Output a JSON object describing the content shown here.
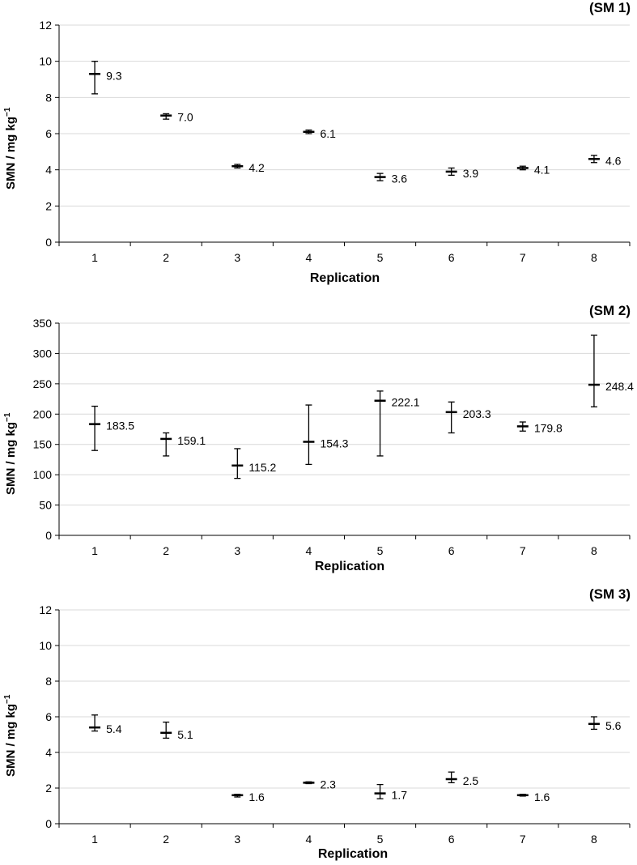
{
  "chart_data": [
    {
      "type": "scatter",
      "title": "(SM 1)",
      "xlabel": "Replication",
      "ylabel": "SMN / mg kg",
      "ylabel_superscript": "−1",
      "ylim": [
        0,
        12
      ],
      "yticks": [
        0,
        2,
        4,
        6,
        8,
        10,
        12
      ],
      "grid": true,
      "x": [
        1,
        2,
        3,
        4,
        5,
        6,
        7,
        8
      ],
      "values": [
        9.3,
        7.0,
        4.2,
        6.1,
        3.6,
        3.9,
        4.1,
        4.6
      ],
      "labels": [
        "9.3",
        "7.0",
        "4.2",
        "6.1",
        "3.6",
        "3.9",
        "4.1",
        "4.6"
      ],
      "error_low": [
        8.2,
        6.8,
        4.1,
        6.0,
        3.4,
        3.7,
        4.0,
        4.4
      ],
      "error_high": [
        10.0,
        7.1,
        4.3,
        6.2,
        3.8,
        4.1,
        4.2,
        4.8
      ]
    },
    {
      "type": "scatter",
      "title": "(SM 2)",
      "xlabel": "Replication",
      "ylabel": "SMN / mg kg",
      "ylabel_superscript": "−1",
      "ylim": [
        0,
        350
      ],
      "yticks": [
        0,
        50,
        100,
        150,
        200,
        250,
        300,
        350
      ],
      "grid": true,
      "x": [
        1,
        2,
        3,
        4,
        5,
        6,
        7,
        8
      ],
      "values": [
        183.5,
        159.1,
        115.2,
        154.3,
        222.1,
        203.3,
        179.8,
        248.4
      ],
      "labels": [
        "183.5",
        "159.1",
        "115.2",
        "154.3",
        "222.1",
        "203.3",
        "179.8",
        "248.4"
      ],
      "error_low": [
        140,
        131,
        94,
        117,
        131,
        169,
        172,
        212
      ],
      "error_high": [
        213,
        169,
        143,
        215,
        238,
        220,
        187,
        330
      ]
    },
    {
      "type": "scatter",
      "title": "(SM 3)",
      "xlabel": "Replication",
      "ylabel": "SMN / mg kg",
      "ylabel_superscript": "−1",
      "ylim": [
        0,
        12
      ],
      "yticks": [
        0,
        2,
        4,
        6,
        8,
        10,
        12
      ],
      "grid": true,
      "x": [
        1,
        2,
        3,
        4,
        5,
        6,
        7,
        8
      ],
      "values": [
        5.4,
        5.1,
        1.6,
        2.3,
        1.7,
        2.5,
        1.6,
        5.6
      ],
      "labels": [
        "5.4",
        "5.1",
        "1.6",
        "2.3",
        "1.7",
        "2.5",
        "1.6",
        "5.6"
      ],
      "error_low": [
        5.2,
        4.8,
        1.5,
        2.25,
        1.4,
        2.3,
        1.55,
        5.3
      ],
      "error_high": [
        6.1,
        5.7,
        1.65,
        2.35,
        2.2,
        2.9,
        1.65,
        6.0
      ]
    }
  ]
}
